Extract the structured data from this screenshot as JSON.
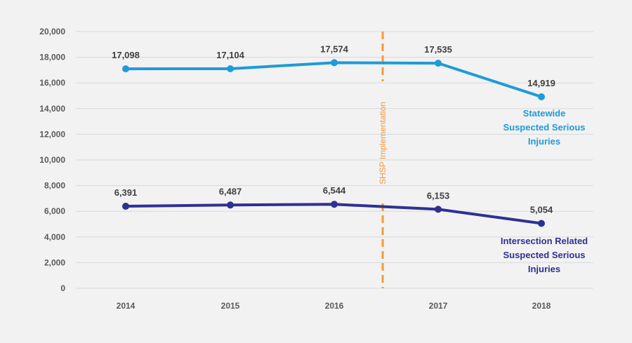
{
  "chart_data": {
    "type": "line",
    "title": "",
    "xlabel": "",
    "ylabel": "",
    "categories": [
      "2014",
      "2015",
      "2016",
      "2017",
      "2018"
    ],
    "ylim": [
      0,
      20000
    ],
    "yticks": [
      0,
      2000,
      4000,
      6000,
      8000,
      10000,
      12000,
      14000,
      16000,
      18000,
      20000
    ],
    "ytick_labels": [
      "0",
      "2,000",
      "4,000",
      "6,000",
      "8,000",
      "10,000",
      "12,000",
      "14,000",
      "16,000",
      "18,000",
      "20,000"
    ],
    "grid": true,
    "series": [
      {
        "name": "Statewide Suspected Serious Injuries",
        "label_lines": [
          "Statewide",
          "Suspected Serious",
          "Injuries"
        ],
        "color": "#1f9bd7",
        "values": [
          17098,
          17104,
          17574,
          17535,
          14919
        ],
        "data_labels": [
          "17,098",
          "17,104",
          "17,574",
          "17,535",
          "14,919"
        ]
      },
      {
        "name": "Intersection Related Suspected Serious Injuries",
        "label_lines": [
          "Intersection Related",
          "Suspected Serious",
          "Injuries"
        ],
        "color": "#2e3192",
        "values": [
          6391,
          6487,
          6544,
          6153,
          5054
        ],
        "data_labels": [
          "6,391",
          "6,487",
          "6,544",
          "6,153",
          "5,054"
        ]
      }
    ],
    "annotations": [
      {
        "text": "SHSP Implementation",
        "position_between": [
          "2016",
          "2017"
        ],
        "color": "#f39a3a"
      }
    ]
  }
}
